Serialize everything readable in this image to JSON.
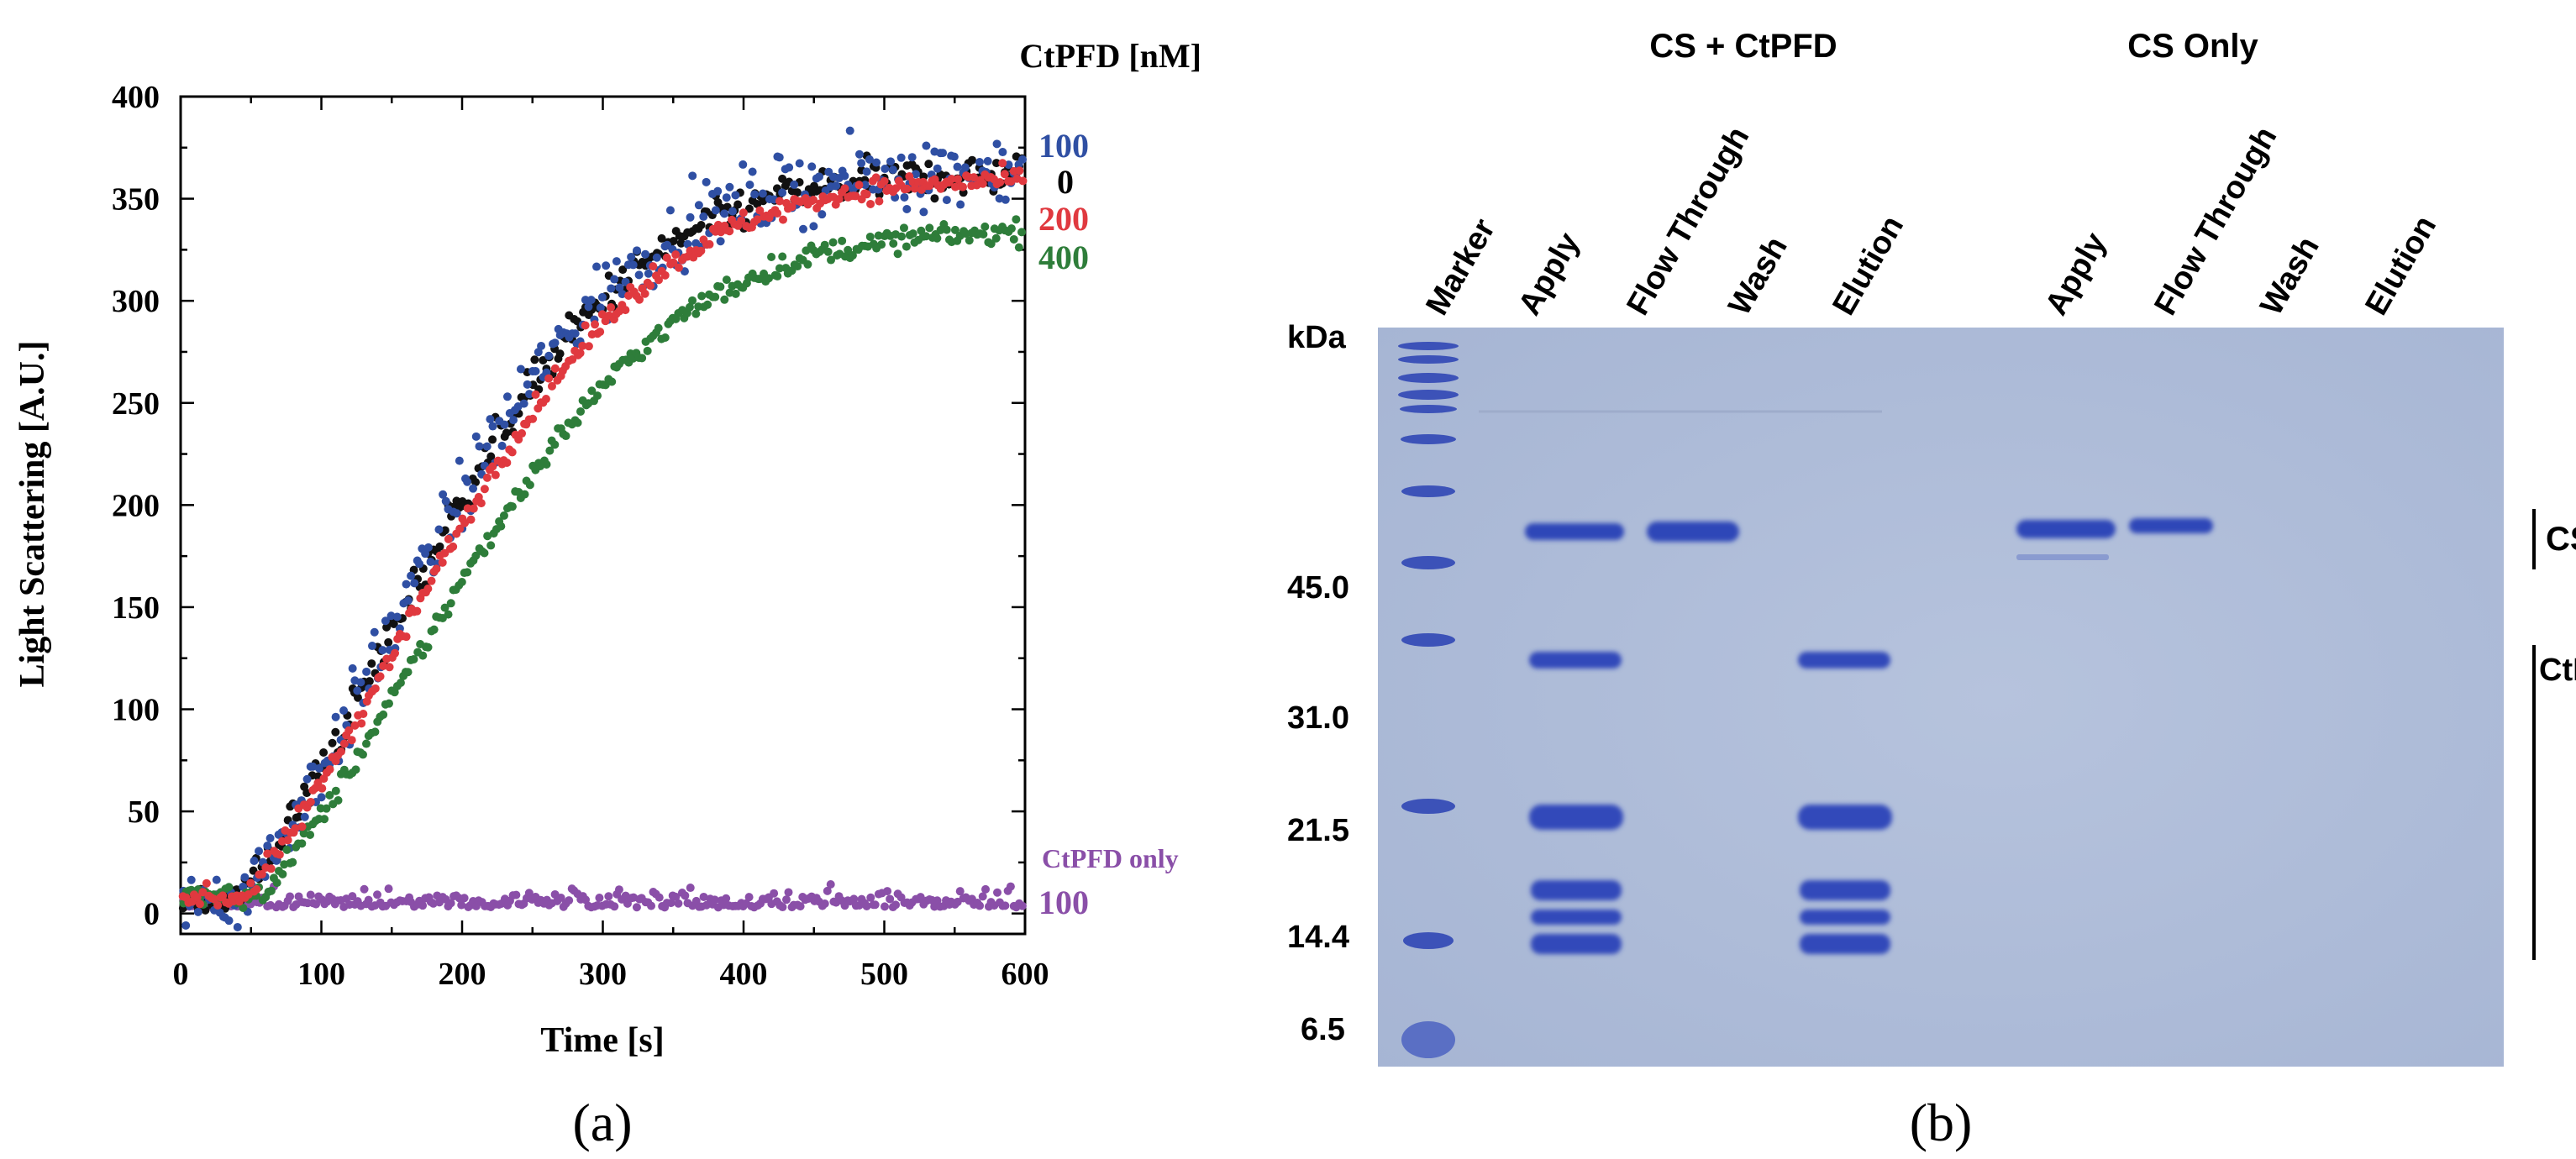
{
  "panel_a": {
    "panel_label": "(a)",
    "legend_header": "CtPFD  [nM]",
    "series_labels": [
      {
        "text": "100",
        "color": "#2f4fa3"
      },
      {
        "text": "0",
        "color": "#000000"
      },
      {
        "text": "200",
        "color": "#e0393f"
      },
      {
        "text": "400",
        "color": "#2e7d3a"
      }
    ],
    "control_label_line1": "CtPFD only",
    "control_label_line2": "100",
    "control_color": "#8a4fa8"
  },
  "chart_data": {
    "type": "scatter",
    "title": "",
    "xlabel": "Time [s]",
    "ylabel": "Light Scattering  [A.U.]",
    "xlim": [
      0,
      600
    ],
    "ylim": [
      -10,
      400
    ],
    "xticks": [
      0,
      100,
      200,
      300,
      400,
      500,
      600
    ],
    "yticks": [
      0,
      50,
      100,
      150,
      200,
      250,
      300,
      350,
      400
    ],
    "series": [
      {
        "name": "100",
        "color": "#2f4fa3",
        "model": {
          "baseline": 8,
          "onset": 42,
          "plateau": 365,
          "tau": 230,
          "noise": 12
        }
      },
      {
        "name": "0",
        "color": "#111111",
        "model": {
          "baseline": 8,
          "onset": 42,
          "plateau": 362,
          "tau": 230,
          "noise": 7
        }
      },
      {
        "name": "200",
        "color": "#e0393f",
        "model": {
          "baseline": 8,
          "onset": 45,
          "plateau": 360,
          "tau": 240,
          "noise": 4
        }
      },
      {
        "name": "400",
        "color": "#2e7d3a",
        "model": {
          "baseline": 8,
          "onset": 55,
          "plateau": 335,
          "tau": 245,
          "noise": 4
        }
      },
      {
        "name": "CtPFD only 100",
        "color": "#8a4fa8",
        "model": {
          "baseline": 5,
          "onset": 600,
          "plateau": 5,
          "tau": 1,
          "noise": 7
        }
      }
    ]
  },
  "panel_b": {
    "panel_label": "(b)",
    "group_headers": [
      "CS + CtPFD",
      "CS Only"
    ],
    "lane_labels": [
      "Marker",
      "Apply",
      "Flow Through",
      "Wash",
      "Elution",
      "Apply",
      "Flow Through",
      "Wash",
      "Elution"
    ],
    "kda_title": "kDa",
    "mw_markers": [
      "45.0",
      "31.0",
      "21.5",
      "14.4",
      "6.5"
    ],
    "band_labels": [
      "CS",
      "CtPFD"
    ],
    "gel_color": "#a9b9d9",
    "band_color": "#2f47b8"
  }
}
